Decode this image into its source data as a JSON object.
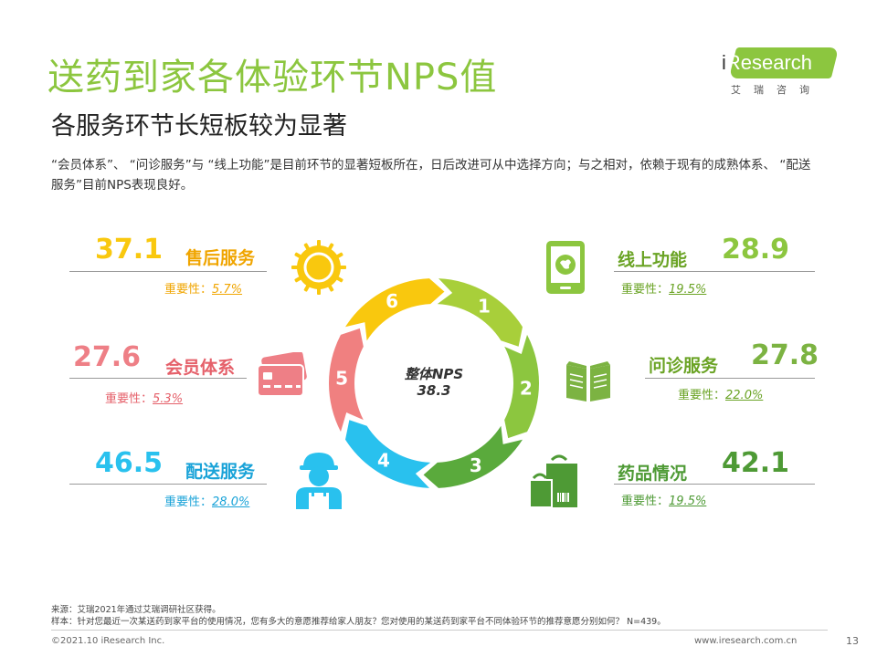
{
  "title": "送药到家各体验环节NPS值",
  "subtitle": "各服务环节长短板较为显著",
  "description": "“会员体系”、 “问诊服务”与 “线上功能”是目前环节的显著短板所在，日后改进可从中选择方向；与之相对，依赖于现有的成熟体系、 “配送服务”目前NPS表现良好。",
  "logo": {
    "brand_i": "i",
    "brand_rest": "Research",
    "cn": "艾瑞咨询"
  },
  "importance_label": "重要性：",
  "center": {
    "label": "整体NPS",
    "value": "38.3"
  },
  "segments": [
    {
      "num": "1",
      "color": "#a8cf3a"
    },
    {
      "num": "2",
      "color": "#8cc63f"
    },
    {
      "num": "3",
      "color": "#5aaa3c"
    },
    {
      "num": "4",
      "color": "#29c1ee"
    },
    {
      "num": "5",
      "color": "#f08080"
    },
    {
      "num": "6",
      "color": "#f9c80e"
    }
  ],
  "items": {
    "online": {
      "label": "线上功能",
      "score": "28.9",
      "importance": "19.5%",
      "color": "#8cc63f"
    },
    "consult": {
      "label": "问诊服务",
      "score": "27.8",
      "importance": "22.0%",
      "color": "#7cb342"
    },
    "drug": {
      "label": "药品情况",
      "score": "42.1",
      "importance": "19.5%",
      "color": "#4e9a35"
    },
    "delivery": {
      "label": "配送服务",
      "score": "46.5",
      "importance": "28.0%",
      "color": "#29c1ee"
    },
    "member": {
      "label": "会员体系",
      "score": "27.6",
      "importance": "5.3%",
      "color": "#ee7f86"
    },
    "aftersale": {
      "label": "售后服务",
      "score": "37.1",
      "importance": "5.7%",
      "color": "#f9c80e"
    }
  },
  "footer": {
    "source": "来源：艾瑞2021年通过艾瑞调研社区获得。",
    "sample": "样本：针对您最近一次某送药到家平台的使用情况，您有多大的意愿推荐给家人朋友？您对使用的某送药到家平台不同体验环节的推荐意愿分别如何？ N=439。",
    "copyright": "©2021.10 iResearch Inc.",
    "site": "www.iresearch.com.cn",
    "page": "13"
  },
  "icons": {
    "online": "smartphone-location-icon",
    "consult": "open-book-icon",
    "drug": "shopping-bags-icon",
    "delivery": "delivery-worker-icon",
    "member": "member-card-icon",
    "aftersale": "sun-badge-icon"
  }
}
